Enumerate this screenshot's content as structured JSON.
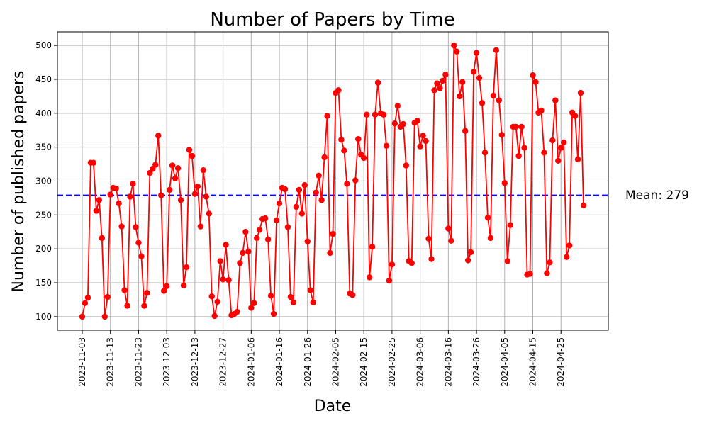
{
  "chart_data": {
    "type": "line",
    "title": "Number of Papers by Time",
    "xlabel": "Date",
    "ylabel": "Number of published papers",
    "x_tick_labels": [
      "2023-11-03",
      "2023-11-13",
      "2023-11-23",
      "2023-12-03",
      "2023-12-13",
      "2023-12-27",
      "2024-01-06",
      "2024-01-16",
      "2024-01-26",
      "2024-02-05",
      "2024-02-15",
      "2024-02-25",
      "2024-03-06",
      "2024-03-16",
      "2024-03-26",
      "2024-04-05",
      "2024-04-15",
      "2024-04-25"
    ],
    "y_ticks": [
      100,
      150,
      200,
      250,
      300,
      350,
      400,
      450,
      500
    ],
    "ylim": [
      80,
      520
    ],
    "grid": true,
    "colors": {
      "series": "#ff0000",
      "mean": "#0000ff",
      "grid": "#b0b0b0"
    },
    "mean": {
      "value": 279,
      "label": "Mean: 279"
    },
    "series": [
      {
        "values": [
          100,
          120,
          128,
          327,
          327,
          256,
          272,
          216,
          100,
          129,
          280,
          290,
          289,
          267,
          233,
          139,
          116,
          277,
          296,
          232,
          209,
          189,
          116,
          135,
          312,
          318,
          324,
          367,
          279,
          138,
          145,
          287,
          323,
          304,
          319,
          272,
          146,
          173,
          346,
          337,
          281,
          292,
          233,
          316,
          277,
          252,
          130,
          101,
          122,
          182,
          155,
          206,
          154,
          102,
          104,
          107,
          179,
          194,
          225,
          196,
          113,
          120,
          216,
          228,
          244,
          245,
          214,
          131,
          104,
          242,
          267,
          290,
          288,
          232,
          129,
          121,
          262,
          287,
          252,
          294,
          211,
          139,
          121,
          283,
          308,
          272,
          335,
          396,
          194,
          222,
          430,
          434,
          361,
          345,
          296,
          134,
          132,
          301,
          362,
          339,
          334,
          398,
          158,
          203,
          398,
          445,
          400,
          398,
          352,
          153,
          177,
          385,
          411,
          380,
          384,
          323,
          182,
          179,
          386,
          389,
          351,
          367,
          359,
          215,
          185,
          434,
          444,
          437,
          448,
          457,
          230,
          212,
          500,
          491,
          425,
          446,
          374,
          183,
          195,
          461,
          489,
          452,
          415,
          342,
          246,
          216,
          426,
          493,
          419,
          368,
          297,
          182,
          235,
          380,
          380,
          337,
          380,
          349,
          162,
          163,
          456,
          446,
          401,
          404,
          342,
          164,
          180,
          360,
          419,
          330,
          349,
          357,
          188,
          205,
          401,
          396,
          332,
          430,
          264
        ]
      }
    ]
  }
}
